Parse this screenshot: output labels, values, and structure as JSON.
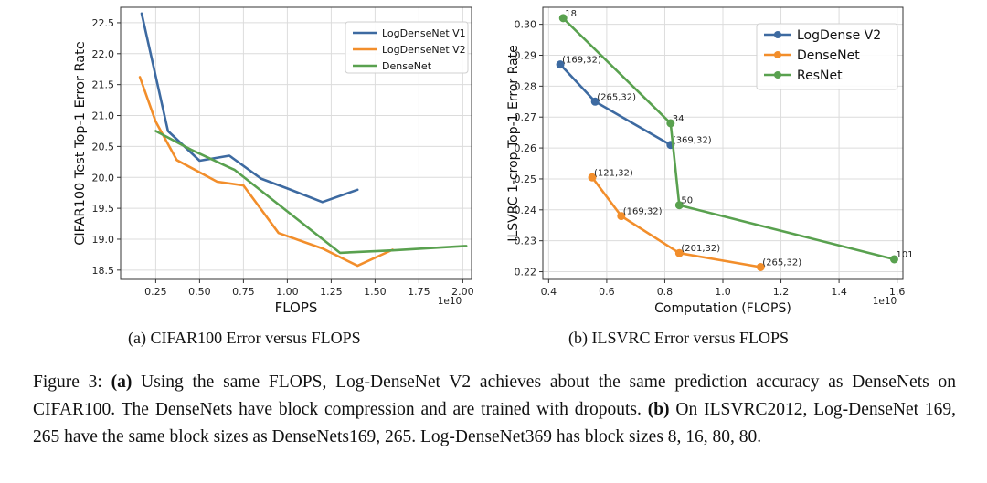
{
  "chart_data": [
    {
      "type": "line",
      "xlabel": "FLOPS",
      "ylabel": "CIFAR100 Test Top-1 Error Rate",
      "x_offset_label": "1e10",
      "xlim": [
        0.05,
        2.05
      ],
      "ylim": [
        18.35,
        22.75
      ],
      "xticks": [
        "0.25",
        "0.50",
        "0.75",
        "1.00",
        "1.25",
        "1.50",
        "1.75",
        "2.00"
      ],
      "yticks": [
        "18.5",
        "19.0",
        "19.5",
        "20.0",
        "20.5",
        "21.0",
        "21.5",
        "22.0",
        "22.5"
      ],
      "legend_position": "upper-right",
      "grid": true,
      "series": [
        {
          "name": "LogDenseNet V1",
          "color": "#3d6aa1",
          "x": [
            0.17,
            0.32,
            0.5,
            0.67,
            0.85,
            1.0,
            1.2,
            1.4
          ],
          "y": [
            22.65,
            20.75,
            20.27,
            20.35,
            19.98,
            19.82,
            19.6,
            19.8
          ]
        },
        {
          "name": "LogDenseNet V2",
          "color": "#f28e2b",
          "x": [
            0.16,
            0.25,
            0.37,
            0.6,
            0.75,
            0.95,
            1.2,
            1.4,
            1.6
          ],
          "y": [
            21.62,
            20.9,
            20.28,
            19.93,
            19.87,
            19.1,
            18.85,
            18.57,
            18.83
          ]
        },
        {
          "name": "DenseNet",
          "color": "#59a14f",
          "x": [
            0.25,
            0.45,
            0.7,
            1.0,
            1.3,
            1.6,
            2.02
          ],
          "y": [
            20.75,
            20.45,
            20.12,
            19.45,
            18.78,
            18.82,
            18.89
          ]
        }
      ]
    },
    {
      "type": "line",
      "xlabel": "Computation (FLOPS)",
      "ylabel": "ILSVRC 1-crop Top-1 Error Rate",
      "x_offset_label": "1e10",
      "xlim": [
        0.38,
        1.62
      ],
      "ylim": [
        0.2175,
        0.3055
      ],
      "xticks": [
        "0.4",
        "0.6",
        "0.8",
        "1.0",
        "1.2",
        "1.4",
        "1.6"
      ],
      "yticks": [
        "0.22",
        "0.23",
        "0.24",
        "0.25",
        "0.26",
        "0.27",
        "0.28",
        "0.29",
        "0.30"
      ],
      "legend_position": "upper-right",
      "grid": true,
      "series": [
        {
          "name": "LogDense V2",
          "color": "#3d6aa1",
          "points": [
            {
              "x": 0.44,
              "y": 0.287,
              "label": "(169,32)"
            },
            {
              "x": 0.56,
              "y": 0.275,
              "label": "(265,32)"
            },
            {
              "x": 0.82,
              "y": 0.261,
              "label": "(369,32)"
            }
          ]
        },
        {
          "name": "DenseNet",
          "color": "#f28e2b",
          "points": [
            {
              "x": 0.55,
              "y": 0.2505,
              "label": "(121,32)"
            },
            {
              "x": 0.65,
              "y": 0.238,
              "label": "(169,32)"
            },
            {
              "x": 0.85,
              "y": 0.226,
              "label": "(201,32)"
            },
            {
              "x": 1.13,
              "y": 0.2215,
              "label": "(265,32)"
            }
          ]
        },
        {
          "name": "ResNet",
          "color": "#59a14f",
          "points": [
            {
              "x": 0.45,
              "y": 0.302,
              "label": "18"
            },
            {
              "x": 0.82,
              "y": 0.268,
              "label": "34"
            },
            {
              "x": 0.85,
              "y": 0.2415,
              "label": "50"
            },
            {
              "x": 1.59,
              "y": 0.224,
              "label": "101"
            }
          ]
        }
      ]
    }
  ],
  "subcaptions": {
    "a": "(a) CIFAR100 Error versus FLOPS",
    "b": "(b) ILSVRC Error versus FLOPS"
  },
  "caption": {
    "fig": "Figure 3: ",
    "a_tag": "(a)",
    "a_text": " Using the same FLOPS, Log-DenseNet V2 achieves about the same prediction accuracy as DenseNets on CIFAR100. The DenseNets have block compression and are trained with dropouts. ",
    "b_tag": "(b)",
    "b_text": " On ILSVRC2012, Log-DenseNet 169, 265 have the same block sizes as DenseNets169, 265. Log-DenseNet369 has block sizes 8, 16, 80, 80."
  }
}
